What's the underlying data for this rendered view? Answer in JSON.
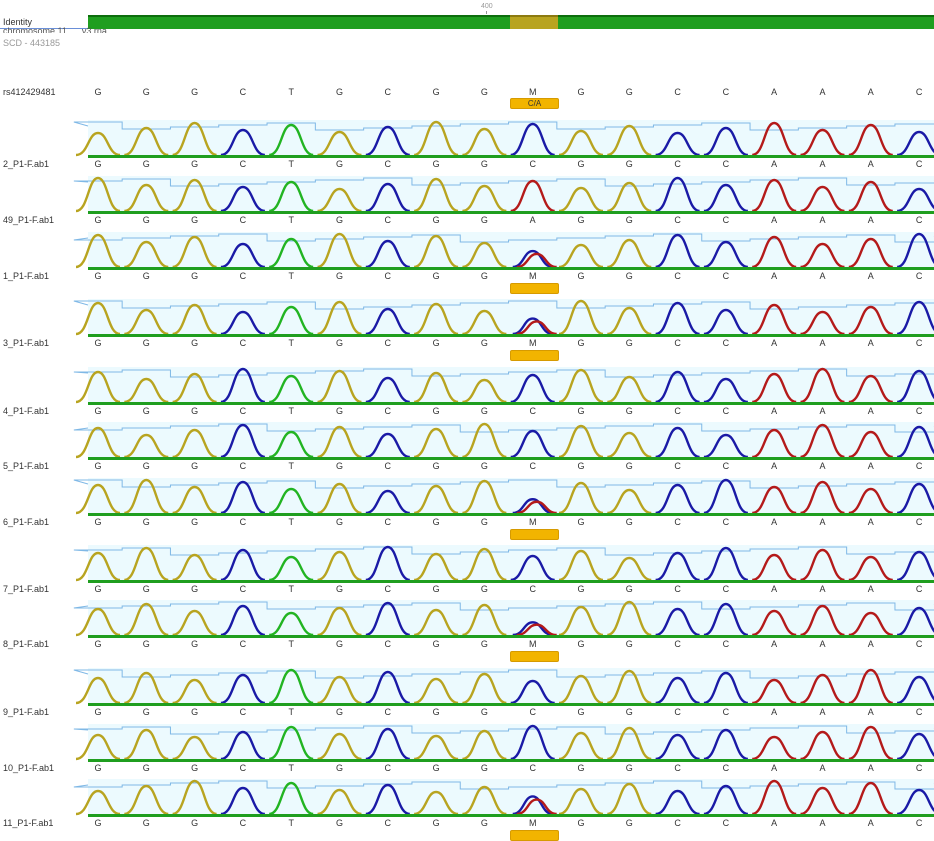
{
  "header": {
    "identity_label": "Identity",
    "ruler_label": "400",
    "reference_name": "chromosome 11 ..._v3.rna",
    "reference_sub": "SCD - 443185",
    "colors": {
      "identity_green": "#1f9e1f",
      "identity_mismatch": "#b8a420",
      "accent": "#f2b400"
    }
  },
  "variant": {
    "id": "rs412429481",
    "bases": [
      "G",
      "G",
      "G",
      "C",
      "T",
      "G",
      "C",
      "G",
      "G",
      "M",
      "G",
      "G",
      "C",
      "C",
      "A",
      "A",
      "A",
      "C"
    ],
    "allele_label": "C/A"
  },
  "trace_colors": {
    "G": "#b8a420",
    "C": "#1a1aa6",
    "T": "#b41a1a",
    "A": "#22b422"
  },
  "tracks": [
    {
      "name": "2_P1-F.ab1",
      "bases": [
        "G",
        "G",
        "G",
        "C",
        "T",
        "G",
        "C",
        "G",
        "G",
        "C",
        "G",
        "G",
        "C",
        "C",
        "A",
        "A",
        "A",
        "C"
      ],
      "het": false
    },
    {
      "name": "49_P1-F.ab1",
      "bases": [
        "G",
        "G",
        "G",
        "C",
        "T",
        "G",
        "C",
        "G",
        "G",
        "A",
        "G",
        "G",
        "C",
        "C",
        "A",
        "A",
        "A",
        "C"
      ],
      "het": false
    },
    {
      "name": "1_P1-F.ab1",
      "bases": [
        "G",
        "G",
        "G",
        "C",
        "T",
        "G",
        "C",
        "G",
        "G",
        "M",
        "G",
        "G",
        "C",
        "C",
        "A",
        "A",
        "A",
        "C"
      ],
      "het": true
    },
    {
      "name": "3_P1-F.ab1",
      "bases": [
        "G",
        "G",
        "G",
        "C",
        "T",
        "G",
        "C",
        "G",
        "G",
        "M",
        "G",
        "G",
        "C",
        "C",
        "A",
        "A",
        "A",
        "C"
      ],
      "het": true
    },
    {
      "name": "4_P1-F.ab1",
      "bases": [
        "G",
        "G",
        "G",
        "C",
        "T",
        "G",
        "C",
        "G",
        "G",
        "C",
        "G",
        "G",
        "C",
        "C",
        "A",
        "A",
        "A",
        "C"
      ],
      "het": false
    },
    {
      "name": "5_P1-F.ab1",
      "bases": [
        "G",
        "G",
        "G",
        "C",
        "T",
        "G",
        "C",
        "G",
        "G",
        "C",
        "G",
        "G",
        "C",
        "C",
        "A",
        "A",
        "A",
        "C"
      ],
      "het": false
    },
    {
      "name": "6_P1-F.ab1",
      "bases": [
        "G",
        "G",
        "G",
        "C",
        "T",
        "G",
        "C",
        "G",
        "G",
        "M",
        "G",
        "G",
        "C",
        "C",
        "A",
        "A",
        "A",
        "C"
      ],
      "het": true
    },
    {
      "name": "7_P1-F.ab1",
      "bases": [
        "G",
        "G",
        "G",
        "C",
        "T",
        "G",
        "C",
        "G",
        "G",
        "C",
        "G",
        "G",
        "C",
        "C",
        "A",
        "A",
        "A",
        "C"
      ],
      "het": false
    },
    {
      "name": "8_P1-F.ab1",
      "bases": [
        "G",
        "G",
        "G",
        "C",
        "T",
        "G",
        "C",
        "G",
        "G",
        "M",
        "G",
        "G",
        "C",
        "C",
        "A",
        "A",
        "A",
        "C"
      ],
      "het": true
    },
    {
      "name": "9_P1-F.ab1",
      "bases": [
        "G",
        "G",
        "G",
        "C",
        "T",
        "G",
        "C",
        "G",
        "G",
        "C",
        "G",
        "G",
        "C",
        "C",
        "A",
        "A",
        "A",
        "C"
      ],
      "het": false
    },
    {
      "name": "10_P1-F.ab1",
      "bases": [
        "G",
        "G",
        "G",
        "C",
        "T",
        "G",
        "C",
        "G",
        "G",
        "C",
        "G",
        "G",
        "C",
        "C",
        "A",
        "A",
        "A",
        "C"
      ],
      "het": false
    },
    {
      "name": "11_P1-F.ab1",
      "bases": [
        "G",
        "G",
        "G",
        "C",
        "T",
        "G",
        "C",
        "G",
        "G",
        "M",
        "G",
        "G",
        "C",
        "C",
        "A",
        "A",
        "A",
        "C"
      ],
      "het": true
    }
  ]
}
